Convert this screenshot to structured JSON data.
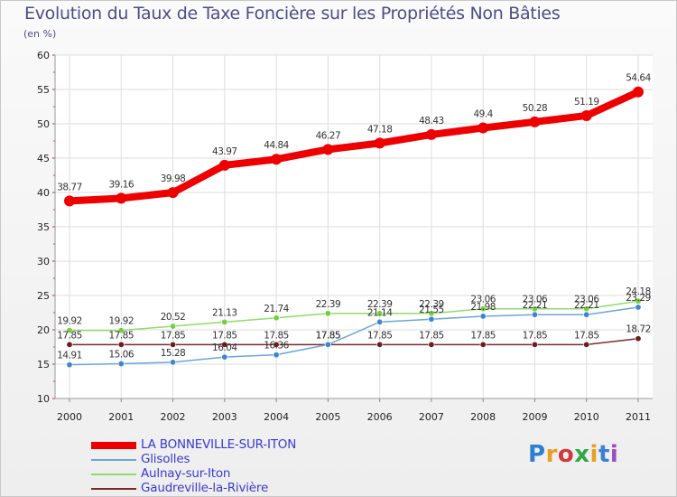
{
  "header": {
    "title": "Evolution du Taux de Taxe Foncière sur les Propriétés Non Bâties",
    "unit": "(en %)"
  },
  "brand": {
    "text": "Proxiti",
    "letter_colors": [
      "#2e7fd0",
      "#e8a020",
      "#d13a3a",
      "#2ea84a",
      "#e8a020",
      "#3b7fd6",
      "#9a4fc0"
    ]
  },
  "chart_data": {
    "type": "line",
    "title": "Evolution du Taux de Taxe Foncière sur les Propriétés Non Bâties",
    "ylabel": "(en %)",
    "xlabel": "",
    "ylim": [
      10,
      60
    ],
    "yticks": [
      10,
      15,
      20,
      25,
      30,
      35,
      40,
      45,
      50,
      55,
      60
    ],
    "grid": true,
    "categories": [
      "2000",
      "2001",
      "2002",
      "2003",
      "2004",
      "2005",
      "2006",
      "2007",
      "2008",
      "2009",
      "2010",
      "2011"
    ],
    "series": [
      {
        "name": "LA BONNEVILLE-SUR-ITON",
        "color": "#ee0000",
        "values": [
          38.77,
          39.16,
          39.98,
          43.97,
          44.84,
          46.27,
          47.18,
          48.43,
          49.4,
          50.28,
          51.19,
          54.64
        ],
        "labels": [
          "38.77",
          "39.16",
          "39.98",
          "43.97",
          "44.84",
          "46.27",
          "47.18",
          "48.43",
          "49.4",
          "50.28",
          "51.19",
          "54.64"
        ]
      },
      {
        "name": "Glisolles",
        "color": "#6aa6d8",
        "values": [
          14.91,
          15.06,
          15.28,
          16.04,
          16.36,
          17.85,
          21.14,
          21.55,
          21.98,
          22.21,
          22.21,
          23.29
        ],
        "labels": [
          "14.91",
          "15.06",
          "15.28",
          "16.04",
          "16.36",
          "17.85",
          "21.14",
          "21.55",
          "21.98",
          "22.21",
          "22.21",
          "23.29"
        ]
      },
      {
        "name": "Aulnay-sur-Iton",
        "color": "#8fdc6a",
        "values": [
          19.92,
          19.92,
          20.52,
          21.13,
          21.74,
          22.39,
          22.39,
          22.39,
          23.06,
          23.06,
          23.06,
          24.18
        ],
        "labels": [
          "19.92",
          "19.92",
          "20.52",
          "21.13",
          "21.74",
          "22.39",
          "22.39",
          "22.39",
          "23.06",
          "23.06",
          "23.06",
          "24.18"
        ]
      },
      {
        "name": "Gaudreville-la-Rivière",
        "color": "#7a2a2a",
        "values": [
          17.85,
          17.85,
          17.85,
          17.85,
          17.85,
          17.85,
          17.85,
          17.85,
          17.85,
          17.85,
          17.85,
          18.72
        ],
        "labels": [
          "17.85",
          "17.85",
          "17.85",
          "17.85",
          "17.85",
          "17.85",
          "17.85",
          "17.85",
          "17.85",
          "17.85",
          "17.85",
          "18.72"
        ]
      }
    ]
  }
}
